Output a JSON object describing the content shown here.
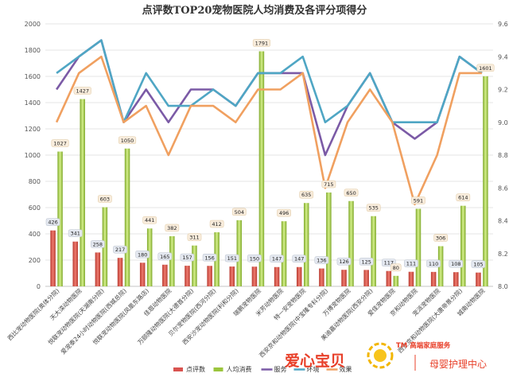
{
  "chart_data": {
    "type": "bar",
    "title": "点评数TOP20宠物医院人均消费及各评分项得分",
    "categories": [
      "西比宠动物医院(奥体分院)",
      "天大滦动物医院",
      "悦联宠动物医院(天湖南分院)",
      "爱宠泰24小时动物医院(西城总院)",
      "悦联宠动物医院(凤凰东路店)",
      "佳恩动物医院",
      "万颐隆动物医院(大德首分院)",
      "贝尔宠物医院(西河分院)",
      "西安沙宠动物医院(利和分院)",
      "瑞鹏宠物医院",
      "米芳动物医院",
      "特一安宠物医院",
      "西安京和动物医院(中宝隆专科分院)",
      "万博宠物医院",
      "美迪嘉动物医院(西安分院)",
      "爱佳宠物医院",
      "京和动物医院",
      "宠派宠物医院",
      "西安京和动物医院(大唐帝景分院)",
      "城南动物医院"
    ],
    "left_axis": {
      "ylim": [
        0,
        2000
      ],
      "ticks": [
        0,
        200,
        400,
        600,
        800,
        1000,
        1200,
        1400,
        1600,
        1800,
        2000
      ]
    },
    "right_axis": {
      "ylim": [
        8,
        9.6
      ],
      "ticks": [
        8,
        8.2,
        8.4,
        8.6,
        8.8,
        9,
        9.2,
        9.4,
        9.6
      ]
    },
    "series": [
      {
        "name": "点评数",
        "kind": "bar",
        "axis": "left",
        "color": "#d9534f",
        "values": [
          426,
          341,
          258,
          217,
          180,
          165,
          157,
          156,
          151,
          150,
          147,
          147,
          136,
          126,
          125,
          117,
          111,
          110,
          108,
          105
        ]
      },
      {
        "name": "人均消费",
        "kind": "bar",
        "axis": "left",
        "color": "#9bc53d",
        "values": [
          1027,
          1427,
          603,
          1050,
          441,
          382,
          311,
          412,
          504,
          1791,
          496,
          635,
          715,
          650,
          535,
          80,
          591,
          306,
          614,
          1601
        ]
      },
      {
        "name": "服务",
        "kind": "line",
        "axis": "right",
        "color": "#7b5aa6",
        "values": [
          9.2,
          9.4,
          9.5,
          9.0,
          9.2,
          9.0,
          9.2,
          9.2,
          9.1,
          9.3,
          9.3,
          9.3,
          8.8,
          9.1,
          9.3,
          9.0,
          8.9,
          9.0,
          9.4,
          9.3
        ]
      },
      {
        "name": "环境",
        "kind": "line",
        "axis": "right",
        "color": "#4fa6c4",
        "values": [
          9.3,
          9.4,
          9.5,
          9.0,
          9.3,
          9.1,
          9.1,
          9.2,
          9.1,
          9.3,
          9.3,
          9.4,
          9.0,
          9.1,
          9.3,
          9.0,
          9.0,
          9.0,
          9.4,
          9.3
        ]
      },
      {
        "name": "效果",
        "kind": "line",
        "axis": "right",
        "color": "#f0a060",
        "values": [
          9.0,
          9.3,
          9.4,
          9.0,
          9.1,
          8.8,
          9.1,
          9.1,
          9.0,
          9.2,
          9.2,
          9.3,
          8.6,
          9.0,
          9.2,
          9.0,
          8.5,
          8.8,
          9.3,
          9.3
        ]
      }
    ]
  },
  "watermark": {
    "cn_text": "爱心宝贝",
    "brand_text": "TM 高端家庭服务",
    "sub_text": "母婴护理中心"
  }
}
